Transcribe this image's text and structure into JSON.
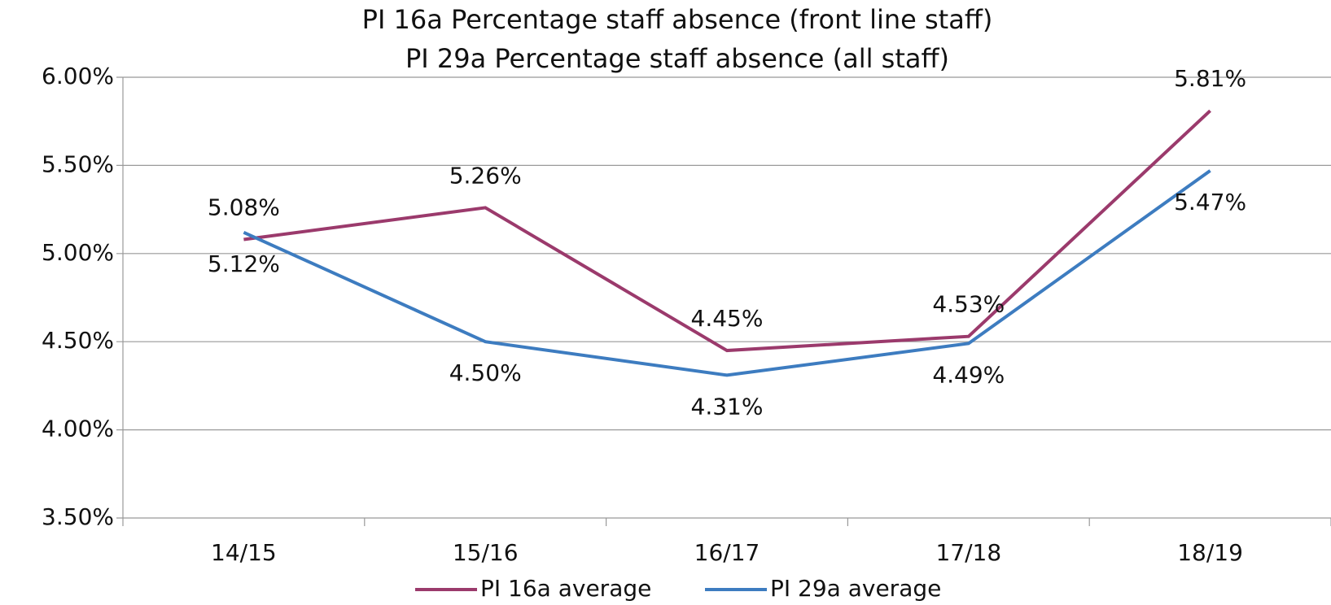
{
  "chart_data": {
    "type": "line",
    "title": "PI 16a  Percentage staff absence (front line staff)",
    "subtitle": "PI 29a Percentage staff absence (all staff)",
    "categories": [
      "14/15",
      "15/16",
      "16/17",
      "17/18",
      "18/19"
    ],
    "series": [
      {
        "name": "PI 16a average",
        "color": "#9b3a6c",
        "values": [
          5.08,
          5.26,
          4.45,
          4.53,
          5.81
        ],
        "value_labels": [
          "5.08%",
          "5.26%",
          "4.45%",
          "4.53%",
          "5.81%"
        ]
      },
      {
        "name": "PI 29a average",
        "color": "#3d7cc0",
        "values": [
          5.12,
          4.5,
          4.31,
          4.49,
          5.47
        ],
        "value_labels": [
          "5.12%",
          "4.50%",
          "4.31%",
          "4.49%",
          "5.47%"
        ]
      }
    ],
    "ylim": [
      3.5,
      6
    ],
    "yticks": [
      {
        "value": 3.5,
        "label": "3.50%"
      },
      {
        "value": 4,
        "label": "4.00%"
      },
      {
        "value": 4.5,
        "label": "4.50%"
      },
      {
        "value": 5,
        "label": "5.00%"
      },
      {
        "value": 5.5,
        "label": "5.50%"
      },
      {
        "value": 6,
        "label": "6.00%"
      }
    ],
    "grid": true,
    "legend": "bottom"
  }
}
